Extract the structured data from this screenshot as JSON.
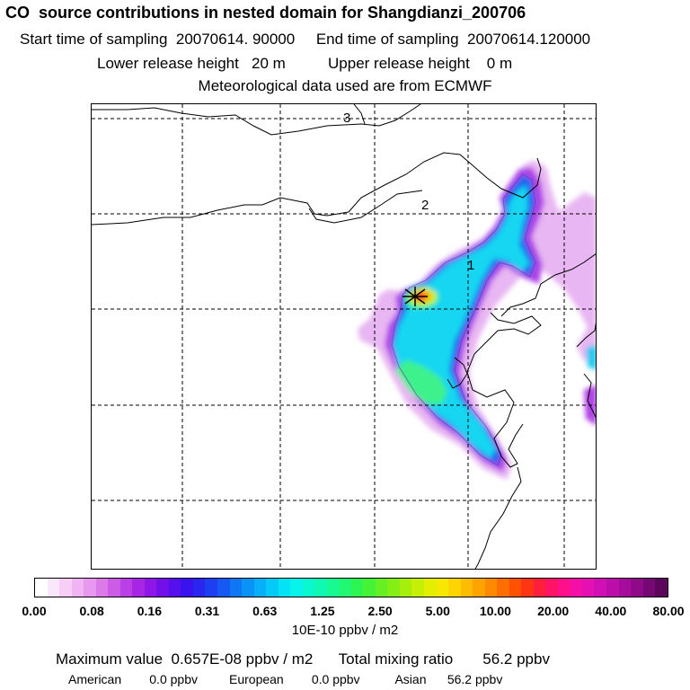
{
  "header": {
    "title": "CO  source contributions in nested domain for Shangdianzi_200706",
    "start_label": "Start time of sampling",
    "start_value": "20070614. 90000",
    "end_label": "End time of sampling",
    "end_value": "20070614.120000",
    "lower_label": "Lower release height",
    "lower_value": "20 m",
    "upper_label": "Upper release height",
    "upper_value": "0 m",
    "met_note": "Meteorological data used are from ECMWF"
  },
  "map": {
    "region_labels": [
      "1",
      "2",
      "3"
    ],
    "station_marker": "asterisk-station-icon"
  },
  "colorbar": {
    "tick_labels": [
      "0.00",
      "0.08",
      "0.16",
      "0.31",
      "0.63",
      "1.25",
      "2.50",
      "5.00",
      "10.00",
      "20.00",
      "40.00",
      "80.00"
    ],
    "units": "10E-10 ppbv / m2",
    "colors": [
      "#ffffff",
      "#fbe7fb",
      "#f6cef6",
      "#f0b4f2",
      "#e898ee",
      "#dc7ae9",
      "#cc5ce6",
      "#bb3fe6",
      "#a726e6",
      "#8e17e8",
      "#7310ea",
      "#5610ec",
      "#3a12ee",
      "#2a26f0",
      "#1e3ef1",
      "#1659f2",
      "#0f76f4",
      "#0a93f6",
      "#07aff8",
      "#05caf8",
      "#04e3f6",
      "#06f4ea",
      "#0af8d0",
      "#10f9b2",
      "#17f992",
      "#20f772",
      "#2ef452",
      "#46f236",
      "#64f022",
      "#84ef14",
      "#a5ef0a",
      "#c6ef05",
      "#e3ee03",
      "#f7e802",
      "#ffd400",
      "#ffbc00",
      "#ffa300",
      "#ff8900",
      "#ff6e00",
      "#ff5200",
      "#ff3514",
      "#ff1e3c",
      "#ff1364",
      "#ff108a",
      "#f410a4",
      "#e410b2",
      "#d010b4",
      "#bc0eab",
      "#a60c9c",
      "#8e0a89",
      "#760873",
      "#5c065b"
    ]
  },
  "footer": {
    "max_label": "Maximum value",
    "max_value": "0.657E-08 ppbv / m2",
    "total_label": "Total mixing ratio",
    "total_value": "56.2 ppbv",
    "american_label": "American",
    "american_value": "0.0 ppbv",
    "european_label": "European",
    "european_value": "0.0 ppbv",
    "asian_label": "Asian",
    "asian_value": "56.2 ppbv"
  }
}
